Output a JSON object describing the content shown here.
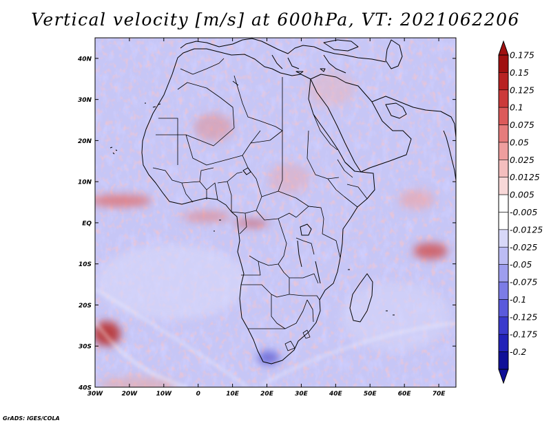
{
  "title": "Vertical velocity [m/s] at 600hPa, VT: 2021062206",
  "credit": "GrADS: IGES/COLA",
  "map": {
    "region": "Africa",
    "variable": "Vertical velocity",
    "units": "m/s",
    "level": "600hPa",
    "valid_time": "2021062206",
    "lon_range": [
      -30,
      75
    ],
    "lat_range": [
      -40,
      45
    ],
    "lon_ticks": [
      "30W",
      "20W",
      "10W",
      "0",
      "10E",
      "20E",
      "30E",
      "40E",
      "50E",
      "60E",
      "70E"
    ],
    "lat_ticks": [
      "40N",
      "30N",
      "20N",
      "10N",
      "EQ",
      "10S",
      "20S",
      "30S",
      "40S"
    ],
    "lon_tick_values": [
      -30,
      -20,
      -10,
      0,
      10,
      20,
      30,
      40,
      50,
      60,
      70
    ],
    "lat_tick_values": [
      40,
      30,
      20,
      10,
      0,
      -10,
      -20,
      -30,
      -40
    ]
  },
  "colorbar": {
    "labels": [
      "0.175",
      "0.15",
      "0.125",
      "0.1",
      "0.075",
      "0.05",
      "0.025",
      "0.0125",
      "0.005",
      "-0.005",
      "-0.0125",
      "-0.025",
      "-0.05",
      "-0.075",
      "-0.1",
      "-0.125",
      "-0.175",
      "-0.2"
    ],
    "colors": [
      "#a01010",
      "#b82222",
      "#cc3a3a",
      "#dc5a5a",
      "#e67c7c",
      "#ee9e9e",
      "#f4bebe",
      "#f8d8d8",
      "#ffffff",
      "#ffffff",
      "#d8d8f8",
      "#bcbcf4",
      "#9e9eee",
      "#7c7ce6",
      "#5a5adc",
      "#3a3acc",
      "#2222b8",
      "#101098"
    ]
  }
}
